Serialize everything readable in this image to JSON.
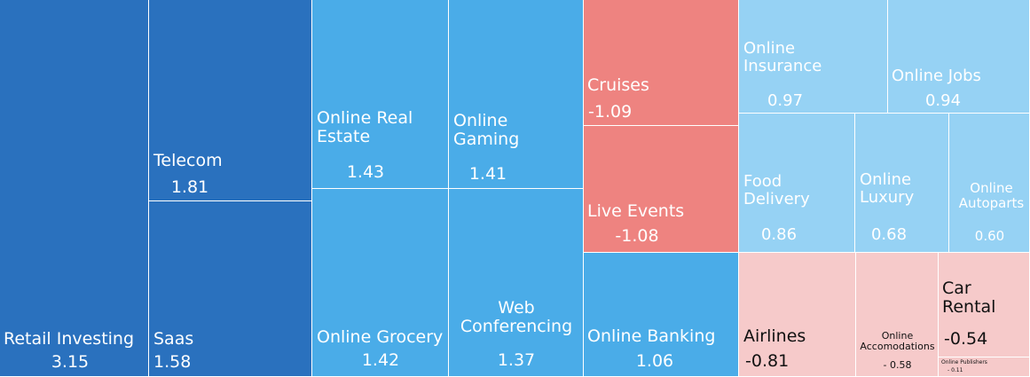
{
  "chart_data": {
    "type": "treemap",
    "title": "",
    "colors": {
      "strong_positive": "#2a71be",
      "positive": "#4aace8",
      "mild_positive": "#96d2f4",
      "strong_negative": "#ee8380",
      "mild_negative": "#f6caca"
    },
    "tiles": [
      {
        "name": "Retail Investing",
        "label": "Retail Investing",
        "value": 3.15,
        "value_text": "3.15"
      },
      {
        "name": "Telecom",
        "label": "Telecom",
        "value": 1.81,
        "value_text": "1.81"
      },
      {
        "name": "Saas",
        "label": "Saas",
        "value": 1.58,
        "value_text": "1.58"
      },
      {
        "name": "Online Real Estate",
        "label": "Online Real\nEstate",
        "value": 1.43,
        "value_text": "1.43"
      },
      {
        "name": "Online Grocery",
        "label": "Online Grocery",
        "value": 1.42,
        "value_text": "1.42"
      },
      {
        "name": "Online Gaming",
        "label": "Online\nGaming",
        "value": 1.41,
        "value_text": "1.41"
      },
      {
        "name": "Web Conferencing",
        "label": "Web\nConferencing",
        "value": 1.37,
        "value_text": "1.37"
      },
      {
        "name": "Cruises",
        "label": "Cruises",
        "value": -1.09,
        "value_text": "-1.09"
      },
      {
        "name": "Live Events",
        "label": "Live Events",
        "value": -1.08,
        "value_text": "-1.08"
      },
      {
        "name": "Online Banking",
        "label": "Online Banking",
        "value": 1.06,
        "value_text": "1.06"
      },
      {
        "name": "Online Insurance",
        "label": "Online\nInsurance",
        "value": 0.97,
        "value_text": "0.97"
      },
      {
        "name": "Online Jobs",
        "label": "Online Jobs",
        "value": 0.94,
        "value_text": "0.94"
      },
      {
        "name": "Food Delivery",
        "label": "Food\nDelivery",
        "value": 0.86,
        "value_text": "0.86"
      },
      {
        "name": "Online Luxury",
        "label": "Online\nLuxury",
        "value": 0.68,
        "value_text": "0.68"
      },
      {
        "name": "Online Autoparts",
        "label": "Online\nAutoparts",
        "value": 0.6,
        "value_text": "0.60"
      },
      {
        "name": "Airlines",
        "label": "Airlines",
        "value": -0.81,
        "value_text": "-0.81"
      },
      {
        "name": "Online Accomodations",
        "label": "Online\nAccomodations",
        "value": -0.58,
        "value_text": "- 0.58"
      },
      {
        "name": "Car Rental",
        "label": "Car\nRental",
        "value": -0.54,
        "value_text": "-0.54"
      },
      {
        "name": "Online Publishers",
        "label": "Online Publishers",
        "value": -0.11,
        "value_text": "- 0.11"
      }
    ]
  }
}
